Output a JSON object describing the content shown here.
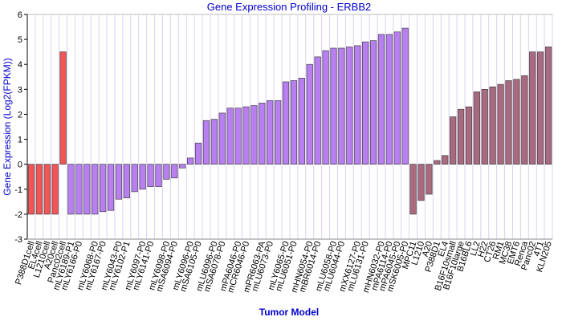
{
  "chart_data": {
    "type": "bar",
    "title": "Gene Expression Profiling - ERBB2",
    "x_label": "Tumor Model",
    "y_label": "Gene Expression (Log2(FPKM))",
    "categories": [
      "P388D1cell",
      "EL4cell",
      "L1210cell",
      "A20cell",
      "Panc02cell",
      "mLY6189-P1",
      "mLY6166-P0",
      null,
      "mLY6068-P0",
      "mLY6167-P0",
      null,
      "mLY6043-P0",
      "mLY6102-P1",
      null,
      "mLY6097-P0",
      "mLY6141-P0",
      null,
      "mLY6098-P0",
      "mSA6094-P0",
      null,
      "mLY6096-P0",
      "mSA6105-P0",
      null,
      "mLU6096-P0",
      "mSA6078-P0",
      null,
      "mPA6046-P0",
      "mCR6046-P0",
      null,
      "mPR6063-PA",
      "mLU6073-P0",
      null,
      "mLY6065-P0",
      "mLU6051-P0",
      null,
      "mHN6054-P0",
      "mBR6014-P0",
      null,
      "mLU6058-P0",
      "mLU6044-P0",
      null,
      "mXX6127-P0",
      "mLU6131-P0",
      null,
      "mHN6032-P0",
      "mPA6114-P0",
      "mPA6045-P0",
      "mSK6005-P0",
      "MPC11",
      "L1210",
      "A20",
      "P388D1",
      "EL4",
      "B16F10small",
      "B16F10large",
      "B16BL6",
      "LL2",
      "H22",
      "CT26",
      "RM1",
      "MC38",
      "EMT6",
      "Renca",
      "Panc02",
      "4T1",
      "KLN205"
    ],
    "values": [
      -2,
      -2,
      -2,
      -2,
      4.5,
      -2,
      -2,
      -2,
      -2,
      -1.9,
      -1.85,
      -1.4,
      -1.35,
      -1.1,
      -1.0,
      -0.9,
      -0.9,
      -0.6,
      -0.55,
      -0.15,
      0.25,
      0.85,
      1.75,
      1.8,
      2.05,
      2.25,
      2.25,
      2.3,
      2.35,
      2.45,
      2.55,
      2.55,
      3.3,
      3.35,
      3.45,
      4.0,
      4.3,
      4.55,
      4.65,
      4.65,
      4.7,
      4.75,
      4.9,
      4.95,
      5.2,
      5.2,
      5.3,
      5.45,
      -2,
      -1.45,
      -1.2,
      0.15,
      0.35,
      1.9,
      2.2,
      2.3,
      2.9,
      3.0,
      3.1,
      3.2,
      3.35,
      3.4,
      3.55,
      4.5,
      4.5,
      4.7
    ],
    "colors": [
      "#f25555",
      "#f25555",
      "#f25555",
      "#f25555",
      "#f25555",
      "#b77ff0",
      "#b77ff0",
      "#b77ff0",
      "#b77ff0",
      "#b77ff0",
      "#b77ff0",
      "#b77ff0",
      "#b77ff0",
      "#b77ff0",
      "#b77ff0",
      "#b77ff0",
      "#b77ff0",
      "#b77ff0",
      "#b77ff0",
      "#b77ff0",
      "#b77ff0",
      "#b77ff0",
      "#b77ff0",
      "#b77ff0",
      "#b77ff0",
      "#b77ff0",
      "#b77ff0",
      "#b77ff0",
      "#b77ff0",
      "#b77ff0",
      "#b77ff0",
      "#b77ff0",
      "#b77ff0",
      "#b77ff0",
      "#b77ff0",
      "#b77ff0",
      "#b77ff0",
      "#b77ff0",
      "#b77ff0",
      "#b77ff0",
      "#b77ff0",
      "#b77ff0",
      "#b77ff0",
      "#b77ff0",
      "#b77ff0",
      "#b77ff0",
      "#b77ff0",
      "#b77ff0",
      "#a86a7c",
      "#a86a7c",
      "#a86a7c",
      "#a86a7c",
      "#a86a7c",
      "#a86a7c",
      "#a86a7c",
      "#a86a7c",
      "#a86a7c",
      "#a86a7c",
      "#a86a7c",
      "#a86a7c",
      "#a86a7c",
      "#a86a7c",
      "#a86a7c",
      "#a86a7c",
      "#a86a7c",
      "#a86a7c"
    ],
    "ylim": [
      -3,
      6
    ],
    "yticks": [
      -3,
      -2,
      -1,
      0,
      1,
      2,
      3,
      4,
      5,
      6
    ],
    "grid": true
  }
}
